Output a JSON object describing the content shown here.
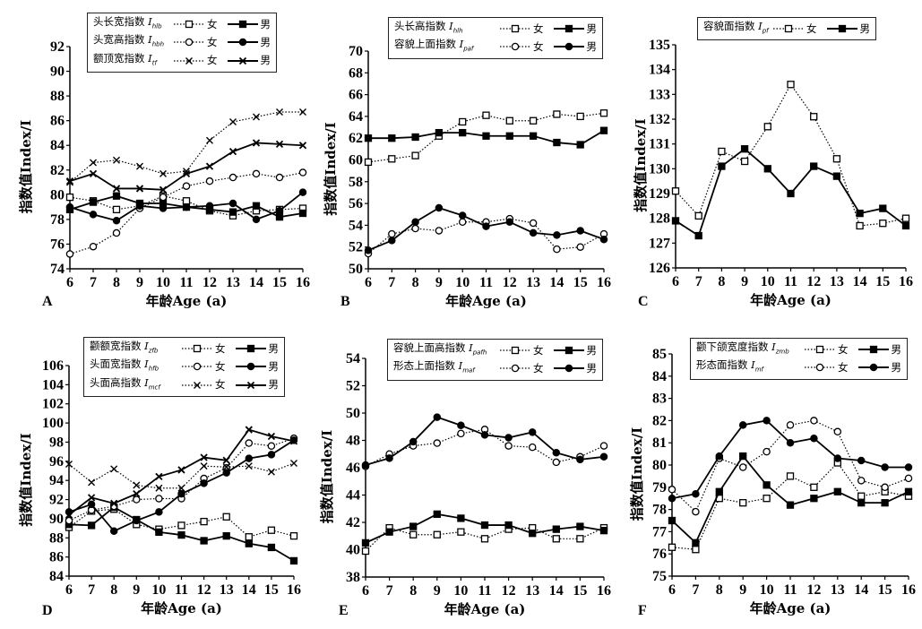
{
  "common": {
    "ylabel": "指数值Index/I",
    "xlabel": "年龄Age (a)",
    "female": "女",
    "male": "男"
  },
  "chart_data": [
    {
      "panel": "A",
      "type": "line",
      "xlabel": "年龄Age (a)",
      "ylabel": "指数值Index/I",
      "x": [
        6,
        7,
        8,
        9,
        10,
        11,
        12,
        13,
        14,
        15,
        16
      ],
      "ylim": [
        74,
        92
      ],
      "yticks": [
        74,
        76,
        78,
        80,
        82,
        84,
        86,
        88,
        90,
        92
      ],
      "indices": [
        {
          "name": "头长宽指数",
          "symbol": "I",
          "sub": "hlb",
          "marker": "square"
        },
        {
          "name": "头宽高指数",
          "symbol": "I",
          "sub": "hbh",
          "marker": "circle"
        },
        {
          "name": "额顶宽指数",
          "symbol": "I",
          "sub": "tf",
          "marker": "x"
        }
      ],
      "series": [
        {
          "name": "头长宽指数 女",
          "marker": "square",
          "sex": "female",
          "values": [
            79.8,
            79.5,
            78.8,
            79.1,
            79.9,
            79.5,
            78.7,
            78.3,
            78.7,
            78.8,
            78.9
          ]
        },
        {
          "name": "头长宽指数 男",
          "marker": "square",
          "sex": "male",
          "values": [
            78.8,
            79.4,
            79.9,
            79.3,
            79.3,
            79.0,
            78.8,
            78.6,
            79.1,
            78.2,
            78.5
          ]
        },
        {
          "name": "头宽高指数 女",
          "marker": "circle",
          "sex": "female",
          "values": [
            75.2,
            75.8,
            76.9,
            78.9,
            79.8,
            80.7,
            81.1,
            81.4,
            81.7,
            81.4,
            81.8
          ]
        },
        {
          "name": "头宽高指数 男",
          "marker": "circle",
          "sex": "male",
          "values": [
            79.0,
            78.4,
            77.9,
            79.1,
            78.9,
            79.0,
            79.1,
            79.3,
            78.0,
            78.7,
            80.2
          ]
        },
        {
          "name": "额顶宽指数 女",
          "marker": "x",
          "sex": "female",
          "values": [
            81.0,
            82.6,
            82.8,
            82.3,
            81.7,
            81.9,
            84.4,
            85.9,
            86.3,
            86.7,
            86.7
          ]
        },
        {
          "name": "额顶宽指数 男",
          "marker": "x",
          "sex": "male",
          "values": [
            81.1,
            81.7,
            80.5,
            80.5,
            80.4,
            81.7,
            82.3,
            83.5,
            84.2,
            84.1,
            84.0
          ]
        }
      ]
    },
    {
      "panel": "B",
      "type": "line",
      "xlabel": "年龄Age (a)",
      "ylabel": "指数值Index/I",
      "x": [
        6,
        7,
        8,
        9,
        10,
        11,
        12,
        13,
        14,
        15,
        16
      ],
      "ylim": [
        50,
        70
      ],
      "yticks": [
        50,
        52,
        54,
        56,
        58,
        60,
        62,
        64,
        66,
        68,
        70
      ],
      "indices": [
        {
          "name": "头长高指数",
          "symbol": "I",
          "sub": "hlh",
          "marker": "square"
        },
        {
          "name": "容貌上面指数",
          "symbol": "I",
          "sub": "paf",
          "marker": "circle"
        }
      ],
      "series": [
        {
          "name": "头长高指数 女",
          "marker": "square",
          "sex": "female",
          "values": [
            59.8,
            60.1,
            60.4,
            62.2,
            63.5,
            64.1,
            63.6,
            63.6,
            64.2,
            64.0,
            64.3
          ]
        },
        {
          "name": "头长高指数 男",
          "marker": "square",
          "sex": "male",
          "values": [
            62.0,
            62.0,
            62.1,
            62.5,
            62.5,
            62.2,
            62.2,
            62.2,
            61.6,
            61.4,
            62.7
          ]
        },
        {
          "name": "容貌上面指数 女",
          "marker": "circle",
          "sex": "female",
          "values": [
            51.4,
            53.2,
            53.7,
            53.5,
            54.3,
            54.3,
            54.6,
            54.2,
            51.8,
            52.0,
            53.2
          ]
        },
        {
          "name": "容貌上面指数 男",
          "marker": "circle",
          "sex": "male",
          "values": [
            51.7,
            52.6,
            54.3,
            55.6,
            54.9,
            53.9,
            54.3,
            53.3,
            53.1,
            53.5,
            52.7
          ]
        }
      ]
    },
    {
      "panel": "C",
      "type": "line",
      "xlabel": "年龄Age (a)",
      "ylabel": "指数值Index/I",
      "x": [
        6,
        7,
        8,
        9,
        10,
        11,
        12,
        13,
        14,
        15,
        16
      ],
      "ylim": [
        126,
        135
      ],
      "yticks": [
        126,
        127,
        128,
        129,
        130,
        131,
        132,
        133,
        134,
        135
      ],
      "indices": [
        {
          "name": "容貌面指数",
          "symbol": "I",
          "sub": "pf",
          "marker": "square"
        }
      ],
      "series": [
        {
          "name": "容貌面指数 女",
          "marker": "square",
          "sex": "female",
          "values": [
            129.1,
            128.1,
            130.7,
            130.3,
            131.7,
            133.4,
            132.1,
            130.4,
            127.7,
            127.8,
            128.0
          ]
        },
        {
          "name": "容貌面指数 男",
          "marker": "square",
          "sex": "male",
          "values": [
            127.9,
            127.3,
            130.1,
            130.8,
            130.0,
            129.0,
            130.1,
            129.7,
            128.2,
            128.4,
            127.7
          ]
        }
      ]
    },
    {
      "panel": "D",
      "type": "line",
      "xlabel": "年龄Age (a)",
      "ylabel": "指数值Index/I",
      "x": [
        6,
        7,
        8,
        9,
        10,
        11,
        12,
        13,
        14,
        15,
        16
      ],
      "ylim": [
        84,
        106
      ],
      "yticks": [
        84,
        86,
        88,
        90,
        92,
        94,
        96,
        98,
        100,
        102,
        104,
        106
      ],
      "indices": [
        {
          "name": "颧额宽指数",
          "symbol": "I",
          "sub": "zfb",
          "marker": "square"
        },
        {
          "name": "头面宽指数",
          "symbol": "I",
          "sub": "hfb",
          "marker": "circle"
        },
        {
          "name": "头面高指数",
          "symbol": "I",
          "sub": "mcf",
          "marker": "x"
        }
      ],
      "series": [
        {
          "name": "颧额宽指数 女",
          "marker": "square",
          "sex": "female",
          "values": [
            89.1,
            90.8,
            91.0,
            89.4,
            88.9,
            89.3,
            89.7,
            90.2,
            88.1,
            88.8,
            88.2
          ]
        },
        {
          "name": "颧额宽指数 男",
          "marker": "square",
          "sex": "male",
          "values": [
            89.4,
            89.3,
            91.2,
            89.9,
            88.6,
            88.3,
            87.7,
            88.2,
            87.4,
            87.0,
            85.6
          ]
        },
        {
          "name": "头面宽指数 女",
          "marker": "circle",
          "sex": "female",
          "values": [
            89.8,
            90.9,
            91.3,
            92.0,
            92.1,
            92.1,
            94.2,
            95.3,
            97.9,
            97.6,
            98.4
          ]
        },
        {
          "name": "头面宽指数 男",
          "marker": "circle",
          "sex": "male",
          "values": [
            90.7,
            91.5,
            88.7,
            89.8,
            90.7,
            92.6,
            93.7,
            94.8,
            96.3,
            96.7,
            98.2
          ]
        },
        {
          "name": "头面高指数 女",
          "marker": "x",
          "sex": "female",
          "values": [
            95.7,
            93.8,
            95.2,
            93.5,
            93.2,
            93.2,
            95.5,
            95.4,
            95.5,
            94.9,
            95.8
          ]
        },
        {
          "name": "头面高指数 男",
          "marker": "x",
          "sex": "male",
          "values": [
            90.4,
            92.2,
            91.6,
            92.6,
            94.4,
            95.1,
            96.4,
            96.1,
            99.3,
            98.6,
            98.1
          ]
        }
      ]
    },
    {
      "panel": "E",
      "type": "line",
      "xlabel": "年龄Age (a)",
      "ylabel": "指数值Index/I",
      "x": [
        6,
        7,
        8,
        9,
        10,
        11,
        12,
        13,
        14,
        15,
        16
      ],
      "ylim": [
        38,
        54
      ],
      "yticks": [
        38,
        40,
        42,
        44,
        46,
        48,
        50,
        52,
        54
      ],
      "indices": [
        {
          "name": "容貌上面高指数",
          "symbol": "I",
          "sub": "pafh",
          "marker": "square"
        },
        {
          "name": "形态上面指数",
          "symbol": "I",
          "sub": "maf",
          "marker": "circle"
        }
      ],
      "series": [
        {
          "name": "容貌上面高指数 女",
          "marker": "square",
          "sex": "female",
          "values": [
            39.9,
            41.6,
            41.1,
            41.1,
            41.3,
            40.8,
            41.5,
            41.6,
            40.8,
            40.8,
            41.6
          ]
        },
        {
          "name": "容貌上面高指数 男",
          "marker": "square",
          "sex": "male",
          "values": [
            40.5,
            41.3,
            41.7,
            42.6,
            42.3,
            41.8,
            41.8,
            41.2,
            41.5,
            41.7,
            41.4
          ]
        },
        {
          "name": "形态上面指数 女",
          "marker": "circle",
          "sex": "female",
          "values": [
            46.1,
            47.0,
            47.6,
            47.8,
            48.5,
            48.8,
            47.6,
            47.5,
            46.4,
            46.8,
            47.6
          ]
        },
        {
          "name": "形态上面指数 男",
          "marker": "circle",
          "sex": "male",
          "values": [
            46.2,
            46.7,
            47.9,
            49.7,
            49.1,
            48.4,
            48.2,
            48.6,
            47.1,
            46.6,
            46.8
          ]
        }
      ]
    },
    {
      "panel": "F",
      "type": "line",
      "xlabel": "年龄Age (a)",
      "ylabel": "指数值Index/I",
      "x": [
        6,
        7,
        8,
        9,
        10,
        11,
        12,
        13,
        14,
        15,
        16
      ],
      "ylim": [
        75,
        85
      ],
      "yticks": [
        75,
        76,
        77,
        78,
        79,
        80,
        81,
        82,
        83,
        84,
        85
      ],
      "indices": [
        {
          "name": "颧下颌宽度指数",
          "symbol": "I",
          "sub": "zmb",
          "marker": "square"
        },
        {
          "name": "形态面指数",
          "symbol": "I",
          "sub": "mf",
          "marker": "circle"
        }
      ],
      "series": [
        {
          "name": "颧下颌宽度指数 女",
          "marker": "square",
          "sex": "female",
          "values": [
            76.3,
            76.2,
            78.5,
            78.3,
            78.5,
            79.5,
            79.0,
            80.1,
            78.6,
            78.8,
            78.6
          ]
        },
        {
          "name": "颧下颌宽度指数 男",
          "marker": "square",
          "sex": "male",
          "values": [
            77.5,
            76.5,
            78.8,
            80.4,
            79.1,
            78.2,
            78.5,
            78.8,
            78.3,
            78.3,
            78.8
          ]
        },
        {
          "name": "形态面指数 女",
          "marker": "circle",
          "sex": "female",
          "values": [
            78.9,
            77.9,
            80.3,
            79.9,
            80.6,
            81.8,
            82.0,
            81.5,
            79.3,
            79.0,
            79.4
          ]
        },
        {
          "name": "形态面指数 男",
          "marker": "circle",
          "sex": "male",
          "values": [
            78.5,
            78.7,
            80.4,
            81.8,
            82.0,
            81.0,
            81.2,
            80.3,
            80.2,
            79.9,
            79.9
          ]
        }
      ]
    }
  ]
}
